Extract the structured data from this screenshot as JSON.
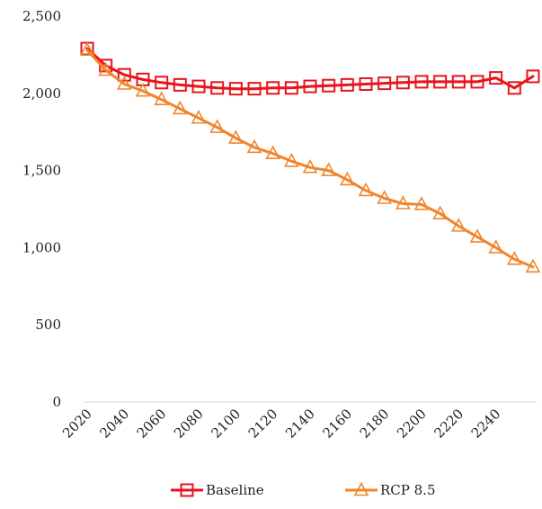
{
  "chart_data": {
    "type": "line",
    "title": "",
    "xlabel": "",
    "ylabel": "",
    "x": [
      2020,
      2030,
      2040,
      2050,
      2060,
      2070,
      2080,
      2090,
      2100,
      2110,
      2120,
      2130,
      2140,
      2150,
      2160,
      2170,
      2180,
      2190,
      2200,
      2210,
      2220,
      2230,
      2240,
      2250,
      2260
    ],
    "x_tick_labels": [
      "2020",
      "2040",
      "2060",
      "2080",
      "2100",
      "2120",
      "2140",
      "2160",
      "2180",
      "2200",
      "2220",
      "2240"
    ],
    "y_tick_labels": [
      "0",
      "500",
      "1,000",
      "1,500",
      "2,000",
      "2,500"
    ],
    "ylim": [
      0,
      2500
    ],
    "grid": false,
    "legend_position": "bottom",
    "series": [
      {
        "name": "Baseline",
        "color": "#e8141b",
        "marker": "square",
        "values": [
          2290,
          2180,
          2120,
          2090,
          2070,
          2055,
          2045,
          2035,
          2030,
          2030,
          2035,
          2035,
          2045,
          2050,
          2055,
          2060,
          2065,
          2070,
          2075,
          2075,
          2075,
          2075,
          2100,
          2035,
          2110
        ]
      },
      {
        "name": "RCP 8.5",
        "color": "#f0852d",
        "marker": "triangle",
        "values": [
          2280,
          2150,
          2060,
          2015,
          1960,
          1900,
          1840,
          1780,
          1710,
          1650,
          1610,
          1560,
          1520,
          1500,
          1440,
          1370,
          1320,
          1285,
          1280,
          1220,
          1140,
          1070,
          1000,
          925,
          875
        ]
      }
    ]
  }
}
